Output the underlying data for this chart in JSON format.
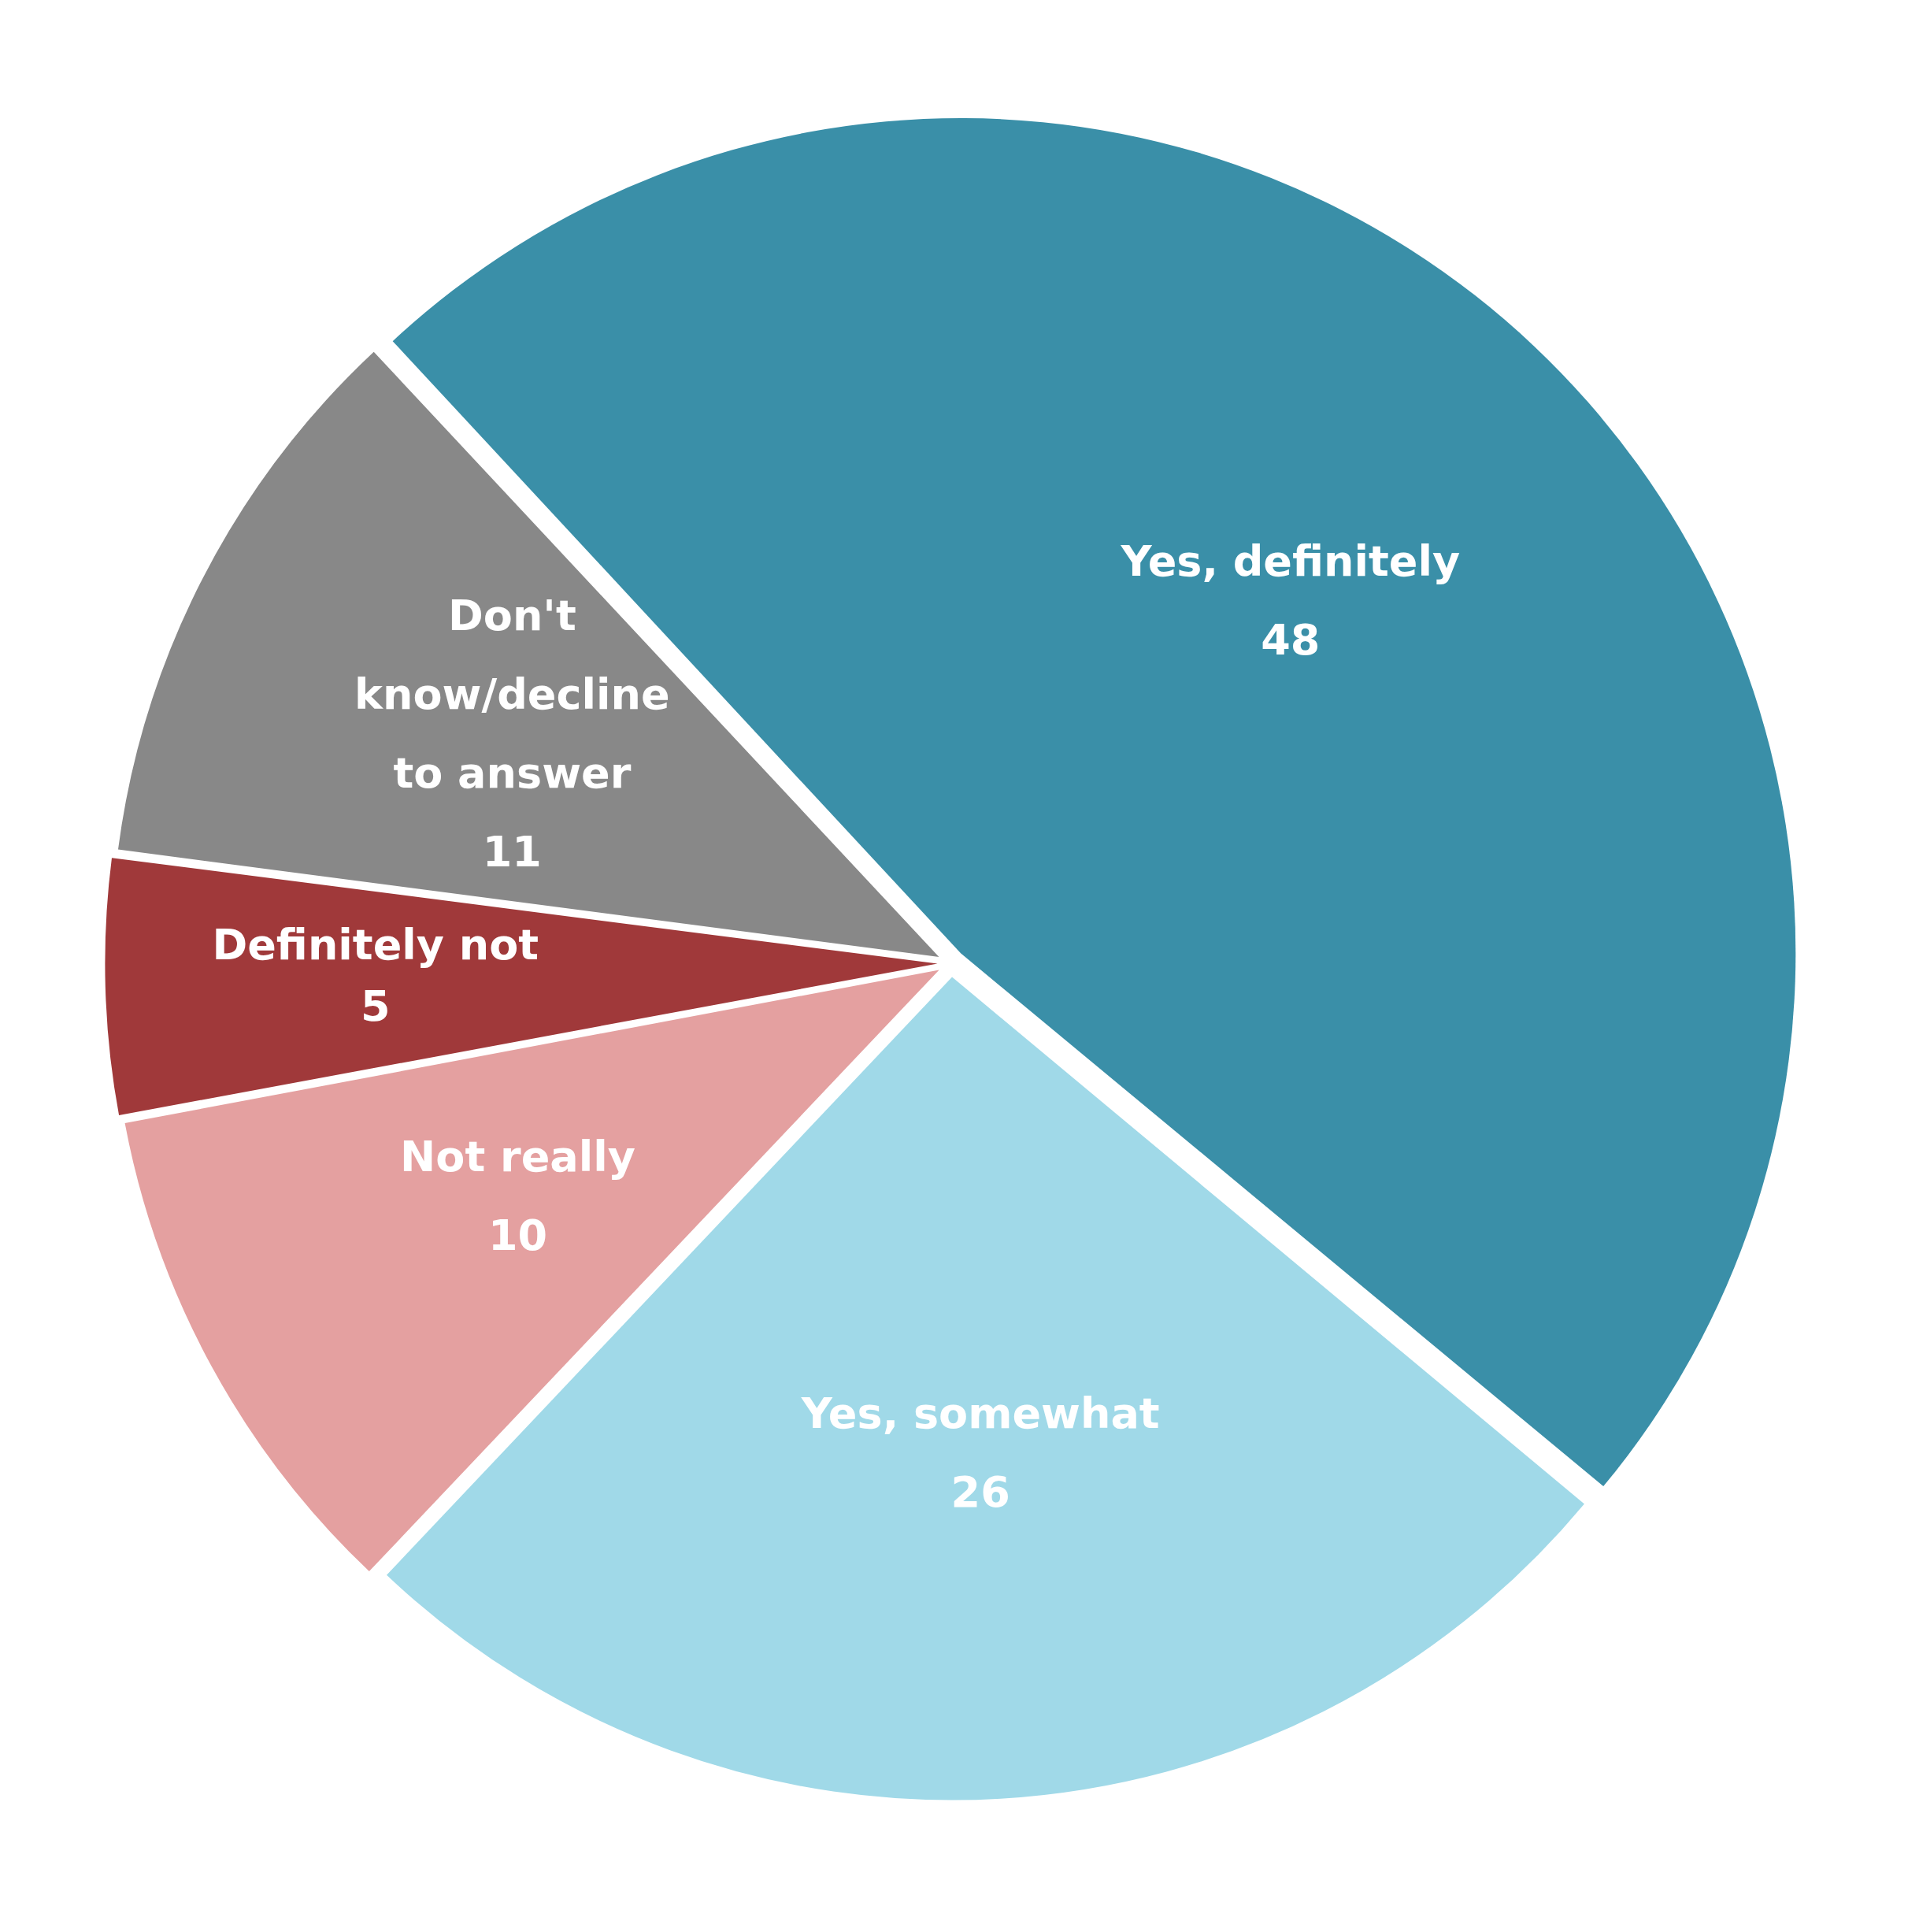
{
  "chart_data": {
    "type": "pie",
    "categories": [
      "Yes, definitely",
      "Yes, somewhat",
      "Not really",
      "Definitely not",
      "Don't know/decline to answer"
    ],
    "values": [
      48,
      26,
      10,
      5,
      11
    ],
    "colors": [
      "#3a8fa8",
      "#a0d9e8",
      "#e4a0a0",
      "#a0393a",
      "#888888"
    ],
    "data_labels": true,
    "legend": false
  }
}
